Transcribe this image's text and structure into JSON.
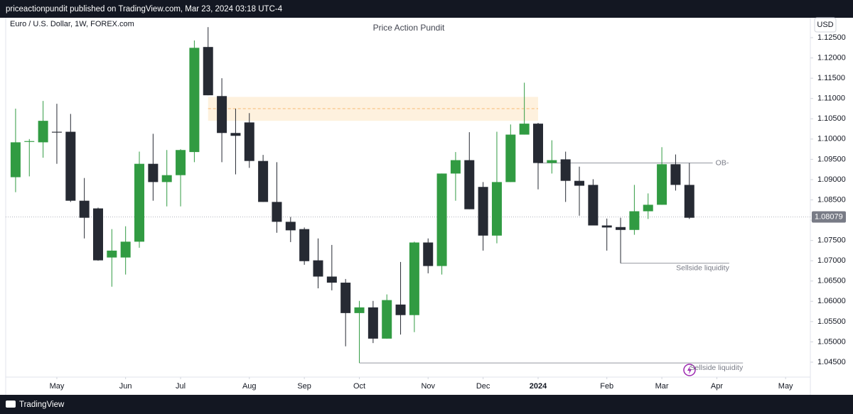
{
  "header": {
    "text": "priceactionpundit published on TradingView.com, Mar 23, 2024 03:18 UTC-4"
  },
  "footer": {
    "brand": "TradingView"
  },
  "chart_data": {
    "type": "candlestick",
    "title": "Price Action Pundit",
    "symbol": "Euro / U.S. Dollar, 1W, FOREX.com",
    "currency": "USD",
    "categories": [
      null,
      null,
      null,
      null,
      null,
      null,
      null,
      null,
      null,
      null,
      null,
      null,
      null,
      null,
      null,
      null,
      null,
      null,
      null,
      null,
      null,
      null,
      null,
      null,
      null,
      null,
      null,
      null,
      null,
      null,
      null,
      null,
      null,
      null,
      null,
      null,
      null,
      null,
      null,
      null,
      null,
      null,
      null,
      null,
      null,
      null,
      null,
      null,
      null,
      null
    ],
    "open": [
      1.0906,
      1.0993,
      1.0992,
      1.1018,
      1.1018,
      1.0848,
      1.0829,
      1.0708,
      1.0708,
      1.0747,
      1.0939,
      1.0894,
      1.0911,
      1.0968,
      1.1227,
      1.1106,
      1.1015,
      1.1041,
      1.0946,
      1.0845,
      1.0796,
      1.0778,
      1.0701,
      1.0661,
      1.0646,
      1.0571,
      1.0585,
      1.0508,
      1.0592,
      1.0566,
      1.0745,
      1.0687,
      1.0915,
      1.0948,
      1.0882,
      1.0762,
      1.0894,
      1.1011,
      1.1038,
      1.0941,
      1.095,
      1.0897,
      1.0887,
      1.0787,
      1.0783,
      1.0776,
      1.0822,
      1.0838,
      1.0938,
      1.0887
    ],
    "high": [
      1.1075,
      1.1,
      1.1094,
      1.1087,
      1.1062,
      1.0904,
      1.0831,
      1.0778,
      1.0785,
      1.0969,
      1.1013,
      1.0973,
      1.0975,
      1.1243,
      1.1276,
      1.115,
      1.1075,
      1.1064,
      1.0961,
      1.0943,
      1.0808,
      1.0782,
      1.0755,
      1.0739,
      1.0655,
      1.0601,
      1.0601,
      1.0617,
      1.0697,
      1.0747,
      1.0755,
      1.0915,
      1.0968,
      1.1017,
      1.0894,
      1.1018,
      1.1036,
      1.1139,
      1.104,
      1.0997,
      1.0969,
      1.0932,
      1.0901,
      1.0804,
      1.0806,
      1.0887,
      1.0866,
      1.098,
      1.0962,
      1.0941
    ],
    "low": [
      1.0869,
      1.0908,
      1.0954,
      1.0939,
      1.0845,
      1.0755,
      1.07,
      1.0636,
      1.0666,
      1.0732,
      1.0848,
      1.0834,
      1.0834,
      1.0943,
      1.1108,
      1.0943,
      1.0913,
      1.0929,
      1.0845,
      1.0769,
      1.0746,
      1.069,
      1.0632,
      1.0627,
      1.0489,
      1.0448,
      1.0497,
      1.0508,
      1.0518,
      1.0524,
      1.0669,
      1.0666,
      1.0848,
      1.0827,
      1.0725,
      1.0743,
      1.0894,
      1.1011,
      1.0876,
      1.0915,
      1.0845,
      1.0811,
      1.0787,
      1.0725,
      1.0694,
      1.0764,
      1.0803,
      1.0838,
      1.0873,
      1.0803
    ],
    "close": [
      1.0992,
      1.0995,
      1.1045,
      1.1016,
      1.0848,
      1.0806,
      1.0701,
      1.0725,
      1.0747,
      1.0939,
      1.0894,
      1.0911,
      1.0973,
      1.1225,
      1.1108,
      1.1015,
      1.1008,
      1.0946,
      1.0845,
      1.0796,
      1.0775,
      1.0699,
      1.0661,
      1.0646,
      1.0571,
      1.0585,
      1.0508,
      1.0603,
      1.0566,
      1.0745,
      1.0687,
      1.0915,
      1.0948,
      1.0827,
      1.0762,
      1.0894,
      1.1011,
      1.1038,
      1.0941,
      1.0948,
      1.0897,
      1.0885,
      1.0787,
      1.0782,
      1.0776,
      1.0822,
      1.0838,
      1.0938,
      1.0887,
      1.0806
    ],
    "up_color": "#319b42",
    "down_color": "#262a33",
    "xlim": [
      -0.72,
      57.8
    ],
    "ylim": [
      1.04132,
      1.12991
    ],
    "xticks": [
      {
        "value": 3,
        "label": "May"
      },
      {
        "value": 8,
        "label": "Jun"
      },
      {
        "value": 12,
        "label": "Jul"
      },
      {
        "value": 17,
        "label": "Aug"
      },
      {
        "value": 21,
        "label": "Sep"
      },
      {
        "value": 25,
        "label": "Oct"
      },
      {
        "value": 30,
        "label": "Nov"
      },
      {
        "value": 34,
        "label": "Dec"
      },
      {
        "value": 38,
        "label": "2024"
      },
      {
        "value": 43,
        "label": "Feb"
      },
      {
        "value": 47,
        "label": "Mar"
      },
      {
        "value": 51,
        "label": "Apr"
      },
      {
        "value": 56,
        "label": "May"
      }
    ],
    "yticks": [
      {
        "value": 1.125,
        "label": "1.12500"
      },
      {
        "value": 1.12,
        "label": "1.12000"
      },
      {
        "value": 1.115,
        "label": "1.11500"
      },
      {
        "value": 1.11,
        "label": "1.11000"
      },
      {
        "value": 1.105,
        "label": "1.10500"
      },
      {
        "value": 1.1,
        "label": "1.10000"
      },
      {
        "value": 1.095,
        "label": "1.09500"
      },
      {
        "value": 1.09,
        "label": "1.09000"
      },
      {
        "value": 1.085,
        "label": "1.08500"
      },
      {
        "value": 1.08,
        "label": "1.08000"
      },
      {
        "value": 1.075,
        "label": "1.07500"
      },
      {
        "value": 1.07,
        "label": "1.07000"
      },
      {
        "value": 1.065,
        "label": "1.06500"
      },
      {
        "value": 1.06,
        "label": "1.06000"
      },
      {
        "value": 1.055,
        "label": "1.05500"
      },
      {
        "value": 1.05,
        "label": "1.05000"
      },
      {
        "value": 1.045,
        "label": "1.04500"
      }
    ],
    "last_price": {
      "value": 1.08079,
      "label": "1.08079"
    },
    "zone": {
      "x": [
        14,
        38
      ],
      "top": 1.1104,
      "bottom": 1.1045,
      "mid": 1.1075,
      "color": "#fdebd0"
    },
    "levels": [
      {
        "label": "OB-",
        "price": 1.0941,
        "x": [
          38,
          50.7
        ]
      },
      {
        "label": "Sellside liquidity",
        "price": 1.0694,
        "x": [
          44,
          51.9
        ]
      },
      {
        "label": "Sellside liquidity",
        "price": 1.0448,
        "x": [
          25,
          52.9
        ]
      }
    ]
  }
}
